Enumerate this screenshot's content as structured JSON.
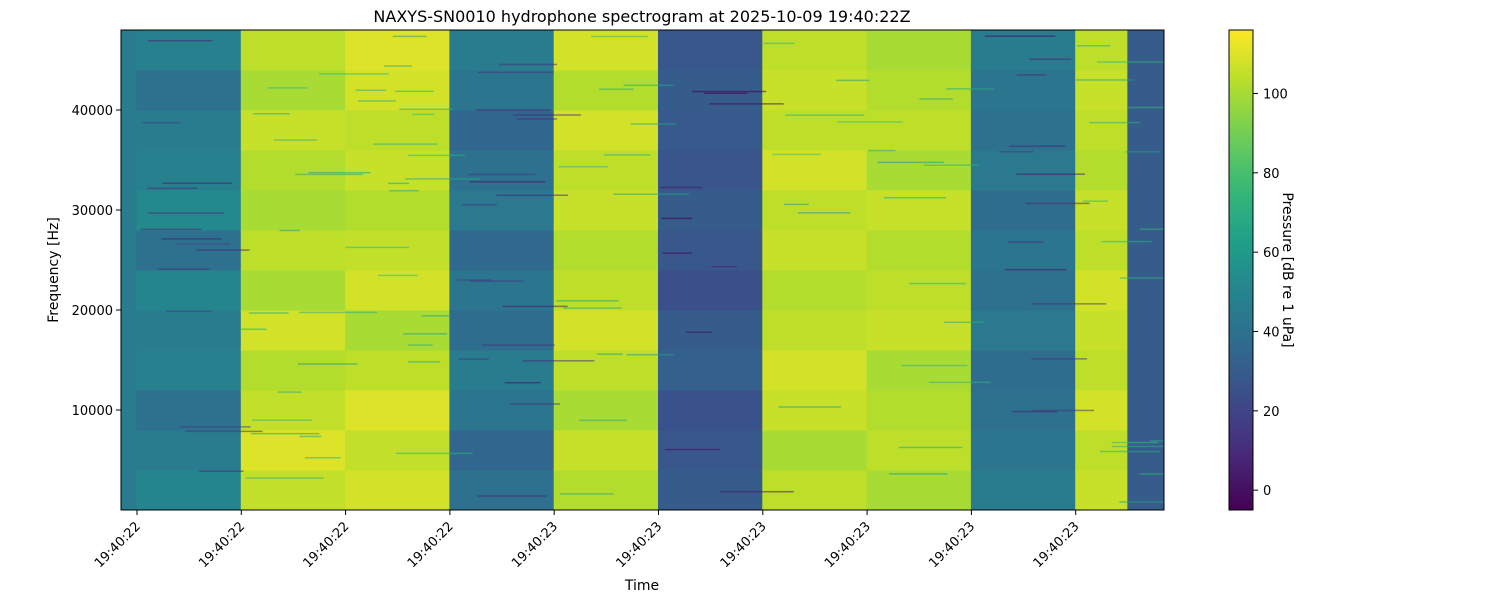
{
  "chart_data": {
    "type": "heatmap",
    "title": "NAXYS-SN0010 hydrophone spectrogram at 2025-10-09 19:40:22Z",
    "xlabel": "Time",
    "ylabel": "Frequency [Hz]",
    "x_tick_labels": [
      "19:40:22",
      "19:40:22",
      "19:40:22",
      "19:40:22",
      "19:40:23",
      "19:40:23",
      "19:40:23",
      "19:40:23",
      "19:40:23",
      "19:40:23"
    ],
    "y_ticks": [
      10000,
      20000,
      30000,
      40000
    ],
    "y_tick_labels": [
      "10000",
      "20000",
      "30000",
      "40000"
    ],
    "ylim": [
      0,
      48000
    ],
    "colormap": "viridis",
    "colorbar": {
      "label": "Pressure [dB re 1 uPa]",
      "range": [
        -5,
        116
      ],
      "ticks": [
        0,
        20,
        40,
        60,
        80,
        100
      ],
      "tick_labels": [
        "0",
        "20",
        "40",
        "60",
        "80",
        "100"
      ]
    },
    "time_columns": 10,
    "column_levels_db": [
      45,
      100,
      103,
      42,
      100,
      30,
      103,
      100,
      40,
      103
    ],
    "band_energy_db": [
      [
        50,
        45,
        40,
        48,
        45,
        50,
        40,
        52,
        48,
        45,
        40,
        48
      ],
      [
        105,
        110,
        105,
        102,
        108,
        100,
        104,
        100,
        102,
        106,
        100,
        104
      ],
      [
        108,
        105,
        110,
        104,
        100,
        108,
        105,
        102,
        106,
        104,
        108,
        110
      ],
      [
        40,
        35,
        42,
        45,
        38,
        42,
        36,
        44,
        40,
        35,
        42,
        45
      ],
      [
        102,
        106,
        100,
        104,
        108,
        104,
        102,
        106,
        104,
        108,
        102,
        108
      ],
      [
        30,
        28,
        26,
        32,
        30,
        25,
        28,
        30,
        27,
        29,
        30,
        28
      ],
      [
        104,
        100,
        106,
        108,
        104,
        102,
        106,
        104,
        108,
        104,
        106,
        104
      ],
      [
        100,
        104,
        102,
        100,
        106,
        104,
        102,
        106,
        100,
        104,
        102,
        100
      ],
      [
        45,
        42,
        40,
        38,
        44,
        40,
        42,
        38,
        44,
        40,
        42,
        45
      ],
      [
        106,
        104,
        108,
        104,
        106,
        108,
        104,
        106,
        102,
        104,
        106,
        104
      ]
    ],
    "trailing_column_db": 30
  }
}
